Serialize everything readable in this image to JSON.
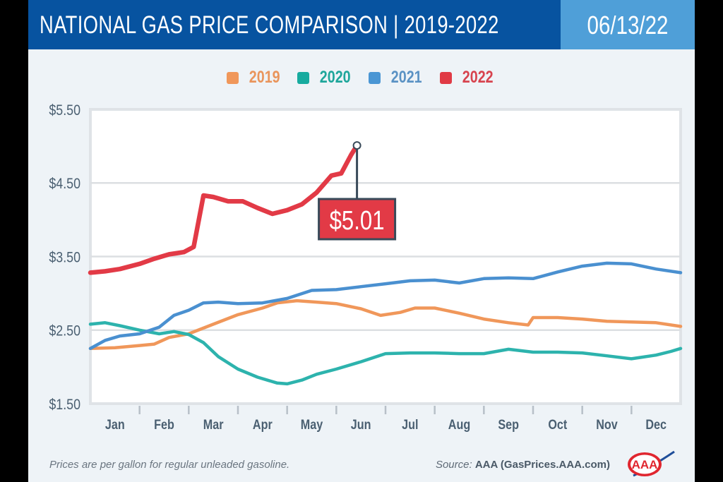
{
  "header": {
    "title": "NATIONAL GAS PRICE COMPARISON | 2019-2022",
    "date": "06/13/22"
  },
  "colors": {
    "header_bg": "#0753a0",
    "date_bg": "#4f9fd8",
    "2019": "#f0975a",
    "2020": "#2db3ad",
    "2021": "#4a90d0",
    "2022": "#e23a46",
    "callout_bg": "#e23a46",
    "callout_border": "#394a59"
  },
  "legend": [
    {
      "label": "2019",
      "color_key": "2019"
    },
    {
      "label": "2020",
      "color_key": "2020"
    },
    {
      "label": "2021",
      "color_key": "2021"
    },
    {
      "label": "2022",
      "color_key": "2022"
    }
  ],
  "callout": {
    "label": "$5.01",
    "series": "2022",
    "month_position": 5.42,
    "value": 5.01
  },
  "footer": {
    "note": "Prices are per gallon for regular unleaded gasoline.",
    "source_label": "Source:",
    "source_value": "AAA (GasPrices.AAA.com)",
    "logo_text": "AAA"
  },
  "chart_data": {
    "type": "line",
    "title": "NATIONAL GAS PRICE COMPARISON | 2019-2022",
    "xlabel": "",
    "ylabel": "",
    "x_unit": "month position (0 = Jan 1, 12 = Dec 31)",
    "xlim": [
      0,
      12
    ],
    "ylim": [
      1.5,
      5.5
    ],
    "yticks": [
      1.5,
      2.5,
      3.5,
      4.5,
      5.5
    ],
    "ytick_labels": [
      "$1.50",
      "$2.50",
      "$3.50",
      "$4.50",
      "$5.50"
    ],
    "categories": [
      "Jan",
      "Feb",
      "Mar",
      "Apr",
      "May",
      "Jun",
      "Jul",
      "Aug",
      "Sep",
      "Oct",
      "Nov",
      "Dec"
    ],
    "grid": true,
    "legend_position": "top-center",
    "series": [
      {
        "name": "2019",
        "x": [
          0,
          0.5,
          1,
          1.3,
          1.6,
          2,
          2.5,
          3,
          3.5,
          3.8,
          4.2,
          4.6,
          5,
          5.5,
          5.9,
          6.3,
          6.6,
          7,
          7.5,
          8,
          8.5,
          8.9,
          9,
          9.5,
          10,
          10.5,
          11,
          11.5,
          12
        ],
        "values": [
          2.25,
          2.26,
          2.29,
          2.31,
          2.4,
          2.45,
          2.58,
          2.71,
          2.8,
          2.87,
          2.9,
          2.88,
          2.86,
          2.79,
          2.7,
          2.74,
          2.8,
          2.8,
          2.73,
          2.65,
          2.6,
          2.57,
          2.67,
          2.67,
          2.65,
          2.62,
          2.61,
          2.6,
          2.55
        ]
      },
      {
        "name": "2020",
        "x": [
          0,
          0.3,
          0.6,
          1,
          1.4,
          1.7,
          2,
          2.3,
          2.6,
          3,
          3.4,
          3.8,
          4,
          4.3,
          4.6,
          5,
          5.5,
          6,
          6.5,
          7,
          7.5,
          8,
          8.5,
          9,
          9.5,
          10,
          10.5,
          11,
          11.5,
          11.8,
          12
        ],
        "values": [
          2.58,
          2.6,
          2.56,
          2.5,
          2.45,
          2.48,
          2.44,
          2.33,
          2.14,
          1.97,
          1.86,
          1.78,
          1.77,
          1.82,
          1.9,
          1.97,
          2.07,
          2.18,
          2.19,
          2.19,
          2.18,
          2.18,
          2.24,
          2.2,
          2.2,
          2.19,
          2.15,
          2.11,
          2.16,
          2.21,
          2.25
        ]
      },
      {
        "name": "2021",
        "x": [
          0,
          0.3,
          0.6,
          1,
          1.4,
          1.7,
          2,
          2.3,
          2.6,
          3,
          3.5,
          4,
          4.5,
          5,
          5.5,
          6,
          6.5,
          7,
          7.5,
          8,
          8.5,
          9,
          9.5,
          10,
          10.5,
          11,
          11.5,
          12
        ],
        "values": [
          2.25,
          2.36,
          2.42,
          2.45,
          2.54,
          2.7,
          2.77,
          2.87,
          2.88,
          2.86,
          2.87,
          2.93,
          3.04,
          3.05,
          3.09,
          3.13,
          3.17,
          3.18,
          3.14,
          3.2,
          3.21,
          3.2,
          3.29,
          3.37,
          3.41,
          3.4,
          3.33,
          3.28
        ]
      },
      {
        "name": "2022",
        "x": [
          0,
          0.3,
          0.6,
          1,
          1.3,
          1.6,
          1.9,
          2.1,
          2.3,
          2.5,
          2.8,
          3.1,
          3.4,
          3.7,
          4.0,
          4.3,
          4.6,
          4.9,
          5.1,
          5.3,
          5.42
        ],
        "values": [
          3.28,
          3.3,
          3.33,
          3.4,
          3.47,
          3.53,
          3.56,
          3.63,
          4.33,
          4.31,
          4.25,
          4.25,
          4.16,
          4.08,
          4.13,
          4.21,
          4.37,
          4.6,
          4.63,
          4.88,
          5.01
        ]
      }
    ]
  }
}
